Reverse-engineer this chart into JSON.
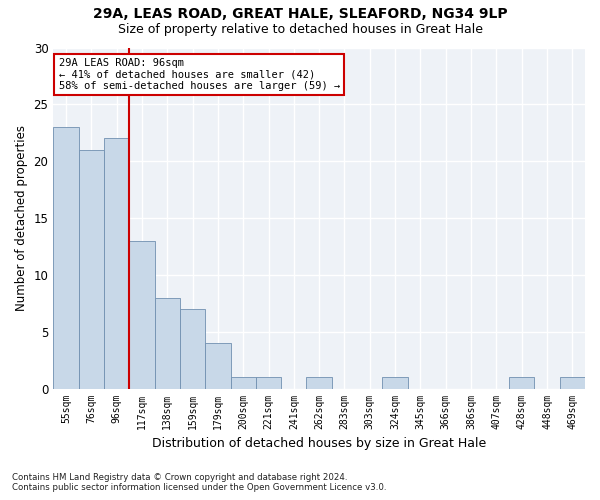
{
  "title1": "29A, LEAS ROAD, GREAT HALE, SLEAFORD, NG34 9LP",
  "title2": "Size of property relative to detached houses in Great Hale",
  "xlabel": "Distribution of detached houses by size in Great Hale",
  "ylabel": "Number of detached properties",
  "categories": [
    "55sqm",
    "76sqm",
    "96sqm",
    "117sqm",
    "138sqm",
    "159sqm",
    "179sqm",
    "200sqm",
    "221sqm",
    "241sqm",
    "262sqm",
    "283sqm",
    "303sqm",
    "324sqm",
    "345sqm",
    "366sqm",
    "386sqm",
    "407sqm",
    "428sqm",
    "448sqm",
    "469sqm"
  ],
  "values": [
    23,
    21,
    22,
    13,
    8,
    7,
    4,
    1,
    1,
    0,
    1,
    0,
    0,
    1,
    0,
    0,
    0,
    0,
    1,
    0,
    1
  ],
  "bar_color": "#c8d8e8",
  "bar_edge_color": "#7090b0",
  "annotation_text": "29A LEAS ROAD: 96sqm\n← 41% of detached houses are smaller (42)\n58% of semi-detached houses are larger (59) →",
  "annotation_box_color": "#ffffff",
  "annotation_box_edge_color": "#cc0000",
  "ylim": [
    0,
    30
  ],
  "yticks": [
    0,
    5,
    10,
    15,
    20,
    25,
    30
  ],
  "background_color": "#eef2f7",
  "grid_color": "#ffffff",
  "footer": "Contains HM Land Registry data © Crown copyright and database right 2024.\nContains public sector information licensed under the Open Government Licence v3.0.",
  "vline_color": "#cc0000",
  "vline_x_idx": 2,
  "bar_width": 1.0
}
